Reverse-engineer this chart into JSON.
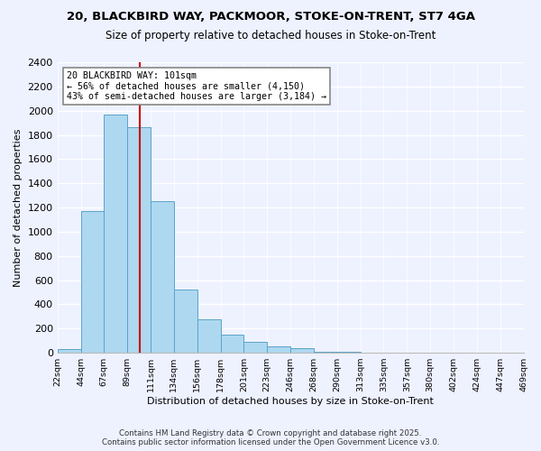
{
  "title1": "20, BLACKBIRD WAY, PACKMOOR, STOKE-ON-TRENT, ST7 4GA",
  "title2": "Size of property relative to detached houses in Stoke-on-Trent",
  "bar_values": [
    30,
    1170,
    1970,
    1860,
    1250,
    520,
    275,
    150,
    90,
    50,
    35,
    10,
    5,
    2,
    1,
    1,
    0,
    0,
    0,
    0
  ],
  "bin_labels": [
    "22sqm",
    "44sqm",
    "67sqm",
    "89sqm",
    "111sqm",
    "134sqm",
    "156sqm",
    "178sqm",
    "201sqm",
    "223sqm",
    "246sqm",
    "268sqm",
    "290sqm",
    "313sqm",
    "335sqm",
    "357sqm",
    "380sqm",
    "402sqm",
    "424sqm",
    "447sqm",
    "469sqm"
  ],
  "bar_color": "#add8f0",
  "bar_edge_color": "#5ba3c9",
  "vline_color": "#cc0000",
  "annotation_title": "20 BLACKBIRD WAY: 101sqm",
  "annotation_line1": "← 56% of detached houses are smaller (4,150)",
  "annotation_line2": "43% of semi-detached houses are larger (3,184) →",
  "xlabel": "Distribution of detached houses by size in Stoke-on-Trent",
  "ylabel": "Number of detached properties",
  "ylim": [
    0,
    2400
  ],
  "yticks": [
    0,
    200,
    400,
    600,
    800,
    1000,
    1200,
    1400,
    1600,
    1800,
    2000,
    2200,
    2400
  ],
  "footer1": "Contains HM Land Registry data © Crown copyright and database right 2025.",
  "footer2": "Contains public sector information licensed under the Open Government Licence v3.0.",
  "bg_color": "#eef2ff",
  "plot_bg_color": "#eef2ff",
  "vline_pos": 3.545
}
